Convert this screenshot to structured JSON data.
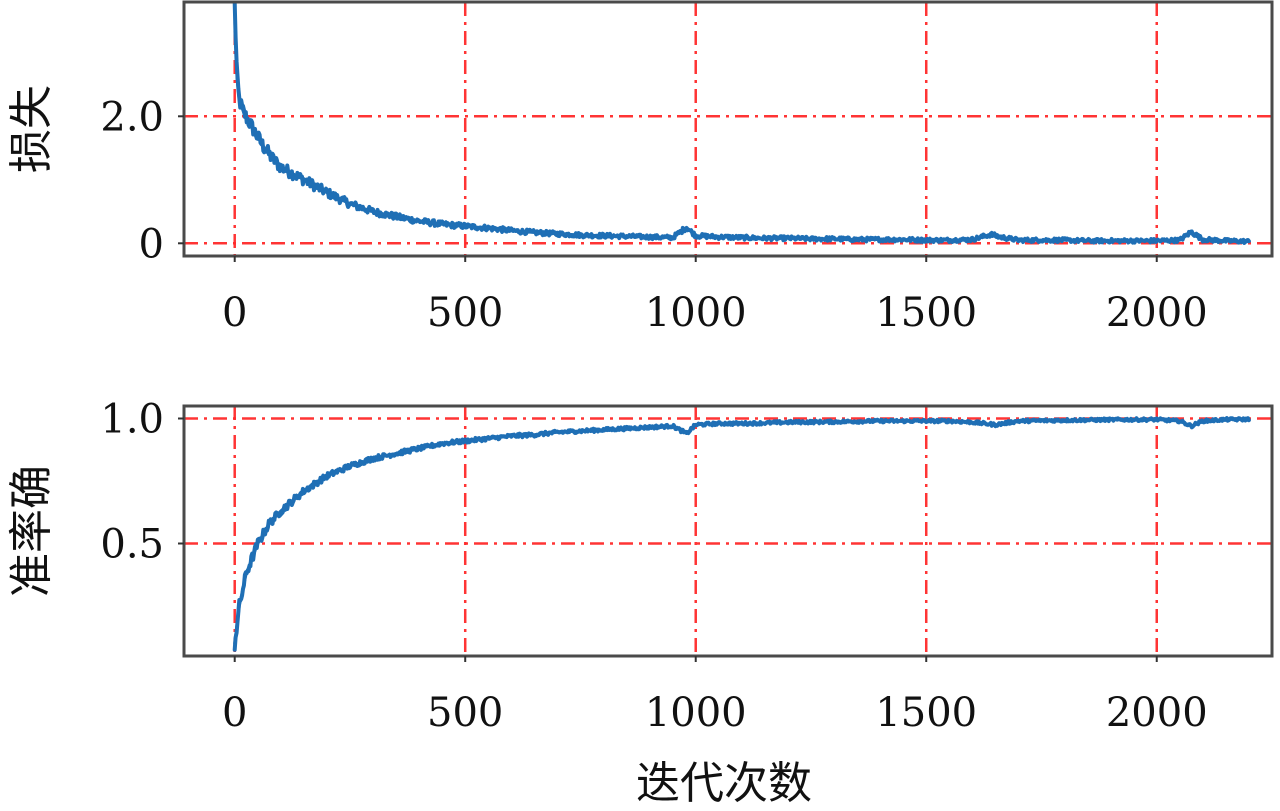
{
  "chart_data": [
    {
      "type": "line",
      "ylabel": "损失",
      "xlabel": "",
      "xlim": [
        -110,
        2250
      ],
      "ylim": [
        -0.2,
        3.8
      ],
      "xticks": [
        0,
        500,
        1000,
        1500,
        2000
      ],
      "xtick_labels": [
        "0",
        "500",
        "1000",
        "1500",
        "2000"
      ],
      "yticks": [
        0,
        2.0
      ],
      "ytick_labels": [
        "0",
        "2.0"
      ],
      "grid": true,
      "grid_style": "dash-dot",
      "grid_color": "#ff2a2a",
      "line_color": "#1f6fb5",
      "series": [
        {
          "x": [
            0,
            5,
            10,
            20,
            40,
            60,
            80,
            100,
            150,
            200,
            250,
            300,
            350,
            400,
            450,
            500,
            550,
            600,
            650,
            700,
            750,
            800,
            850,
            900,
            950,
            980,
            1000,
            1050,
            1100,
            1150,
            1200,
            1250,
            1300,
            1350,
            1400,
            1450,
            1500,
            1550,
            1600,
            1640,
            1660,
            1700,
            1750,
            1800,
            1850,
            1900,
            1950,
            2000,
            2050,
            2075,
            2100,
            2150,
            2200
          ],
          "y": [
            3.75,
            2.6,
            2.25,
            2.05,
            1.8,
            1.55,
            1.35,
            1.2,
            1.0,
            0.8,
            0.62,
            0.5,
            0.42,
            0.35,
            0.3,
            0.27,
            0.24,
            0.2,
            0.17,
            0.15,
            0.13,
            0.12,
            0.11,
            0.1,
            0.09,
            0.25,
            0.12,
            0.1,
            0.09,
            0.08,
            0.08,
            0.07,
            0.07,
            0.06,
            0.06,
            0.06,
            0.05,
            0.05,
            0.06,
            0.14,
            0.1,
            0.05,
            0.05,
            0.05,
            0.04,
            0.04,
            0.04,
            0.04,
            0.05,
            0.18,
            0.06,
            0.04,
            0.03
          ]
        }
      ]
    },
    {
      "type": "line",
      "ylabel": "准率确",
      "xlabel": "迭代次数",
      "xlim": [
        -110,
        2250
      ],
      "ylim": [
        0.05,
        1.05
      ],
      "xticks": [
        0,
        500,
        1000,
        1500,
        2000
      ],
      "xtick_labels": [
        "0",
        "500",
        "1000",
        "1500",
        "2000"
      ],
      "yticks": [
        0.5,
        1.0
      ],
      "ytick_labels": [
        "0.5",
        "1.0"
      ],
      "grid": true,
      "grid_style": "dash-dot",
      "grid_color": "#ff2a2a",
      "line_color": "#1f6fb5",
      "series": [
        {
          "x": [
            0,
            10,
            25,
            50,
            75,
            100,
            150,
            200,
            250,
            300,
            350,
            400,
            450,
            500,
            550,
            600,
            650,
            700,
            750,
            800,
            850,
            900,
            950,
            980,
            1000,
            1050,
            1100,
            1150,
            1200,
            1300,
            1400,
            1500,
            1550,
            1600,
            1650,
            1700,
            1800,
            1900,
            2000,
            2050,
            2075,
            2100,
            2150,
            2200
          ],
          "y": [
            0.1,
            0.25,
            0.38,
            0.5,
            0.58,
            0.63,
            0.71,
            0.77,
            0.81,
            0.84,
            0.86,
            0.88,
            0.9,
            0.91,
            0.92,
            0.93,
            0.935,
            0.945,
            0.95,
            0.955,
            0.96,
            0.965,
            0.97,
            0.94,
            0.975,
            0.98,
            0.98,
            0.982,
            0.985,
            0.987,
            0.99,
            0.99,
            0.99,
            0.985,
            0.975,
            0.99,
            0.993,
            0.995,
            0.996,
            0.99,
            0.97,
            0.99,
            0.996,
            0.997
          ]
        }
      ]
    }
  ]
}
